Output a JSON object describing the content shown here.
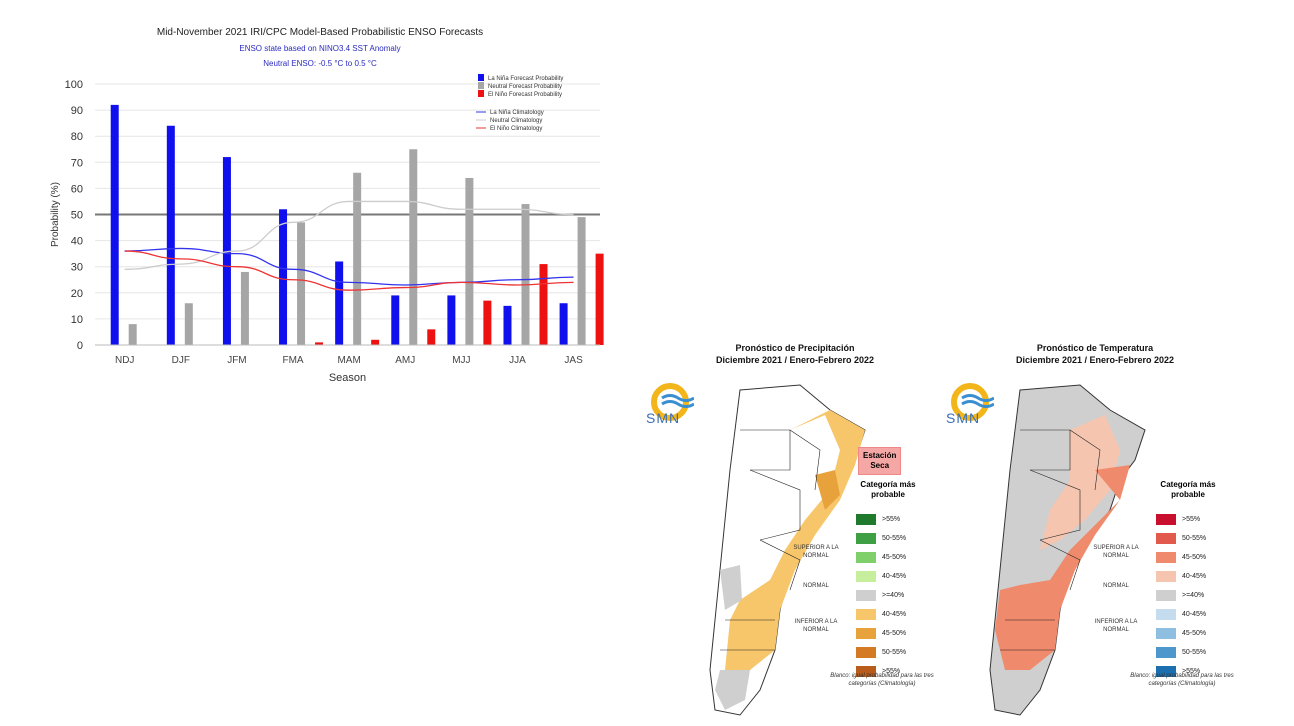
{
  "chart_data": {
    "type": "bar",
    "title": "Mid-November 2021 IRI/CPC Model-Based Probabilistic ENSO Forecasts",
    "subtitle_1": "ENSO state based on NINO3.4 SST Anomaly",
    "subtitle_2": "Neutral ENSO: -0.5 °C to 0.5 °C",
    "xlabel": "Season",
    "ylabel": "Probability (%)",
    "ylim": [
      0,
      100
    ],
    "yticks": [
      0,
      10,
      20,
      30,
      40,
      50,
      60,
      70,
      80,
      90,
      100
    ],
    "categories": [
      "NDJ",
      "DJF",
      "JFM",
      "FMA",
      "MAM",
      "AMJ",
      "MJJ",
      "JJA",
      "JAS"
    ],
    "series": [
      {
        "name": "La Niña Forecast Probability",
        "color": "#1010ee",
        "values": [
          92,
          84,
          72,
          52,
          32,
          19,
          19,
          15,
          16
        ]
      },
      {
        "name": "Neutral Forecast Probability",
        "color": "#a6a6a6",
        "values": [
          8,
          16,
          28,
          47,
          66,
          75,
          64,
          54,
          49
        ]
      },
      {
        "name": "El Niño Forecast Probability",
        "color": "#ee1111",
        "values": [
          0,
          0,
          0,
          1,
          2,
          6,
          17,
          31,
          35
        ]
      }
    ],
    "climatology": [
      {
        "name": "La Niña Climatology",
        "color": "#3333ee",
        "values": [
          36,
          37,
          35,
          29,
          24,
          23,
          24,
          25,
          26
        ]
      },
      {
        "name": "Neutral Climatology",
        "color": "#cccccc",
        "values": [
          29,
          31,
          36,
          47,
          55,
          55,
          52,
          52,
          50
        ]
      },
      {
        "name": "El Niño Climatology",
        "color": "#ee3333",
        "values": [
          36,
          33,
          30,
          25,
          21,
          22,
          24,
          23,
          24
        ]
      }
    ],
    "reference_line": 50,
    "grid": true,
    "legend_position": "top-right"
  },
  "maps": {
    "precip": {
      "title_line1": "Pronóstico de Precipitación",
      "title_line2": "Diciembre 2021 / Enero-Febrero 2022",
      "logo_text": "SMN",
      "dry_season_label_1": "Estación",
      "dry_season_label_2": "Seca",
      "legend_title_1": "Categoría más",
      "legend_title_2": "probable",
      "superior_label": "SUPERIOR A LA NORMAL",
      "normal_label": "NORMAL",
      "inferior_label": "INFERIOR A LA NORMAL",
      "footnote": "Blanco: igual probabilidad para las tres categorías (Climatología)",
      "legend": [
        {
          "label": ">55%",
          "color": "#1f7a2e"
        },
        {
          "label": "50-55%",
          "color": "#3e9f44"
        },
        {
          "label": "45-50%",
          "color": "#7fcf6a"
        },
        {
          "label": "40-45%",
          "color": "#c6ee9d"
        },
        {
          "label": ">=40%",
          "color": "#cfcfcf"
        },
        {
          "label": "40-45%",
          "color": "#f7c66a"
        },
        {
          "label": "45-50%",
          "color": "#e8a23c"
        },
        {
          "label": "50-55%",
          "color": "#d47a22"
        },
        {
          "label": ">55%",
          "color": "#b85c1c"
        }
      ]
    },
    "temp": {
      "title_line1": "Pronóstico de Temperatura",
      "title_line2": "Diciembre 2021 / Enero-Febrero 2022",
      "logo_text": "SMN",
      "legend_title_1": "Categoría más",
      "legend_title_2": "probable",
      "superior_label": "SUPERIOR A LA NORMAL",
      "normal_label": "NORMAL",
      "inferior_label": "INFERIOR A LA NORMAL",
      "footnote": "Blanco: igual probabilidad para las tres categorías (Climatología)",
      "legend": [
        {
          "label": ">55%",
          "color": "#c8102e"
        },
        {
          "label": "50-55%",
          "color": "#e25a4e"
        },
        {
          "label": "45-50%",
          "color": "#ef8b6c"
        },
        {
          "label": "40-45%",
          "color": "#f6c5b0"
        },
        {
          "label": ">=40%",
          "color": "#cfcfcf"
        },
        {
          "label": "40-45%",
          "color": "#c5dcee"
        },
        {
          "label": "45-50%",
          "color": "#8fbfe0"
        },
        {
          "label": "50-55%",
          "color": "#4e97cc"
        },
        {
          "label": ">55%",
          "color": "#1b6fae"
        }
      ]
    }
  }
}
